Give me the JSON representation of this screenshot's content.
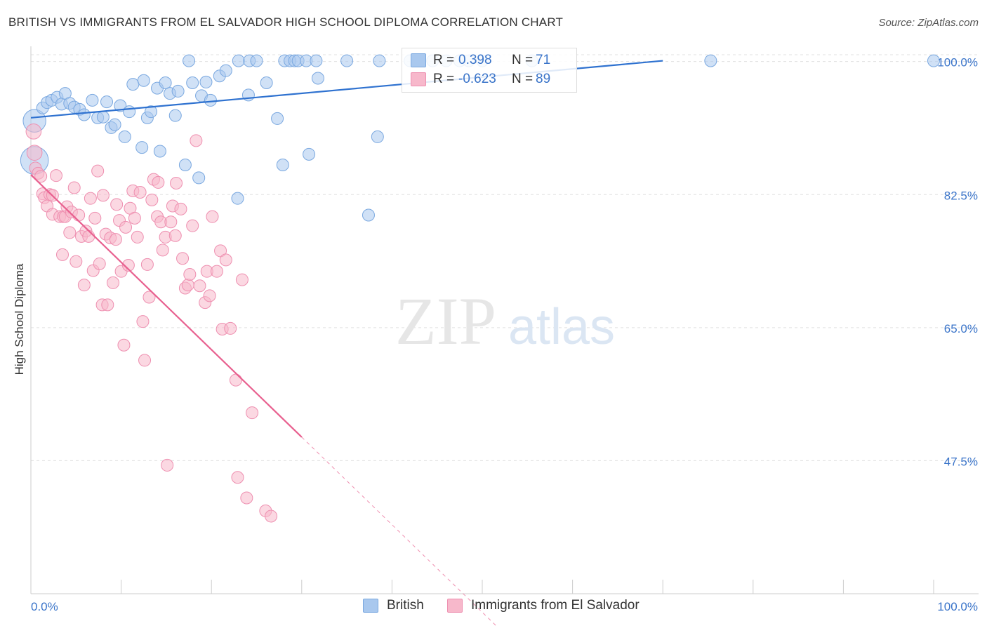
{
  "title": "BRITISH VS IMMIGRANTS FROM EL SALVADOR HIGH SCHOOL DIPLOMA CORRELATION CHART",
  "source": "Source: ZipAtlas.com",
  "watermark_zip": "ZIP",
  "watermark_atlas": "atlas",
  "legend": {
    "british": {
      "r_label": "R =",
      "r_value": "0.398",
      "n_label": "N =",
      "n_value": "71"
    },
    "salvador": {
      "r_label": "R =",
      "r_value": "-0.623",
      "n_label": "N =",
      "n_value": "89"
    }
  },
  "colors": {
    "british_fill": "#a9c8ee",
    "british_stroke": "#7aa8e0",
    "british_line": "#2f72d0",
    "salvador_fill": "#f7b8cb",
    "salvador_stroke": "#ee8fb0",
    "salvador_line": "#e8608f",
    "tick_label": "#3a74c9",
    "grid": "#e0e0e0"
  },
  "chart_data": {
    "type": "scatter",
    "title": "BRITISH VS IMMIGRANTS FROM EL SALVADOR HIGH SCHOOL DIPLOMA CORRELATION CHART",
    "ylabel": "High School Diploma",
    "xlabel": "",
    "xlim": [
      0,
      100
    ],
    "ylim": [
      30,
      102
    ],
    "x_tick_labels": [
      "0.0%",
      "100.0%"
    ],
    "y_ticks": [
      {
        "value": 100,
        "label": "100.0%"
      },
      {
        "value": 82.5,
        "label": "82.5%"
      },
      {
        "value": 65,
        "label": "65.0%"
      },
      {
        "value": 47.5,
        "label": "47.5%"
      }
    ],
    "grid": true,
    "legend_position": "bottom",
    "series": [
      {
        "name": "British",
        "r": 0.398,
        "n": 71,
        "trend": {
          "x": [
            0,
            70
          ],
          "y": [
            92.6,
            100.1
          ],
          "dashed_extension": false
        },
        "points": [
          [
            0.4,
            92.2,
            18
          ],
          [
            0.4,
            87.0,
            22
          ],
          [
            1.3,
            93.9,
            10
          ],
          [
            1.8,
            94.6,
            10
          ],
          [
            2.3,
            94.9,
            10
          ],
          [
            2.9,
            95.3,
            10
          ],
          [
            3.4,
            94.4,
            10
          ],
          [
            3.8,
            95.8,
            10
          ],
          [
            4.3,
            94.5,
            10
          ],
          [
            4.8,
            94.0,
            10
          ],
          [
            5.4,
            93.7,
            10
          ],
          [
            5.9,
            93.0,
            10
          ],
          [
            6.8,
            94.9,
            10
          ],
          [
            7.4,
            92.6,
            10
          ],
          [
            8.0,
            92.7,
            10
          ],
          [
            8.4,
            94.7,
            10
          ],
          [
            8.9,
            91.3,
            10
          ],
          [
            9.3,
            91.7,
            10
          ],
          [
            9.9,
            94.2,
            10
          ],
          [
            10.4,
            90.1,
            10
          ],
          [
            10.9,
            93.4,
            10
          ],
          [
            11.3,
            97.0,
            10
          ],
          [
            12.3,
            88.7,
            10
          ],
          [
            12.5,
            97.5,
            10
          ],
          [
            12.9,
            92.6,
            10
          ],
          [
            13.3,
            93.4,
            10
          ],
          [
            14.0,
            96.5,
            10
          ],
          [
            14.3,
            88.2,
            10
          ],
          [
            14.9,
            97.2,
            10
          ],
          [
            15.4,
            95.8,
            10
          ],
          [
            16.0,
            92.9,
            10
          ],
          [
            16.3,
            96.1,
            10
          ],
          [
            17.1,
            86.4,
            10
          ],
          [
            17.5,
            100.1,
            10
          ],
          [
            17.9,
            97.2,
            10
          ],
          [
            18.6,
            84.7,
            10
          ],
          [
            18.9,
            95.5,
            10
          ],
          [
            19.4,
            97.3,
            10
          ],
          [
            19.9,
            94.9,
            10
          ],
          [
            20.9,
            98.1,
            10
          ],
          [
            21.6,
            98.8,
            10
          ],
          [
            22.9,
            82.0,
            10
          ],
          [
            23.0,
            100.1,
            10
          ],
          [
            24.1,
            95.6,
            10
          ],
          [
            24.2,
            100.1,
            10
          ],
          [
            25.0,
            100.1,
            10
          ],
          [
            26.1,
            97.2,
            10
          ],
          [
            27.3,
            92.5,
            10
          ],
          [
            27.9,
            86.4,
            10
          ],
          [
            28.1,
            100.1,
            10
          ],
          [
            28.7,
            100.1,
            10
          ],
          [
            29.2,
            100.1,
            10
          ],
          [
            29.6,
            100.1,
            10
          ],
          [
            30.5,
            100.1,
            10
          ],
          [
            30.8,
            87.8,
            10
          ],
          [
            31.6,
            100.1,
            10
          ],
          [
            31.8,
            97.8,
            10
          ],
          [
            35.0,
            100.1,
            10
          ],
          [
            37.4,
            79.8,
            10
          ],
          [
            38.4,
            90.1,
            10
          ],
          [
            38.6,
            100.1,
            10
          ],
          [
            42.0,
            100.1,
            10
          ],
          [
            43.0,
            100.1,
            10
          ],
          [
            44.5,
            100.1,
            10
          ],
          [
            46.0,
            100.1,
            10
          ],
          [
            47.5,
            100.1,
            10
          ],
          [
            48.5,
            100.1,
            10
          ],
          [
            50.0,
            100.1,
            10
          ],
          [
            55.5,
            100.1,
            10
          ],
          [
            75.3,
            100.1,
            10
          ],
          [
            100.0,
            100.1,
            10
          ]
        ]
      },
      {
        "name": "Immigrants from El Salvador",
        "r": -0.623,
        "n": 89,
        "trend": {
          "x": [
            0,
            30
          ],
          "y": [
            85.1,
            50.6
          ],
          "dashed_to": [
            55,
            21.8
          ]
        },
        "points": [
          [
            0.3,
            90.8,
            12
          ],
          [
            0.4,
            88.0,
            12
          ],
          [
            0.5,
            86.0,
            10
          ],
          [
            0.8,
            85.3,
            10
          ],
          [
            1.1,
            84.9,
            10
          ],
          [
            1.3,
            82.6,
            10
          ],
          [
            1.5,
            82.1,
            10
          ],
          [
            1.8,
            81.0,
            10
          ],
          [
            2.1,
            82.5,
            10
          ],
          [
            2.4,
            82.4,
            10
          ],
          [
            2.4,
            79.9,
            10
          ],
          [
            2.8,
            85.0,
            10
          ],
          [
            3.2,
            79.6,
            10
          ],
          [
            3.5,
            74.6,
            10
          ],
          [
            3.6,
            79.6,
            10
          ],
          [
            3.8,
            79.6,
            10
          ],
          [
            4.0,
            80.9,
            10
          ],
          [
            4.3,
            77.5,
            10
          ],
          [
            4.5,
            80.2,
            10
          ],
          [
            4.8,
            83.4,
            10
          ],
          [
            5.0,
            73.7,
            10
          ],
          [
            5.3,
            79.8,
            10
          ],
          [
            5.6,
            77.0,
            10
          ],
          [
            5.9,
            70.6,
            10
          ],
          [
            6.1,
            77.7,
            10
          ],
          [
            6.4,
            77.0,
            10
          ],
          [
            6.6,
            82.0,
            10
          ],
          [
            6.9,
            72.5,
            10
          ],
          [
            7.1,
            79.4,
            10
          ],
          [
            7.4,
            85.6,
            10
          ],
          [
            7.6,
            73.4,
            10
          ],
          [
            7.9,
            68.0,
            10
          ],
          [
            8.0,
            82.4,
            10
          ],
          [
            8.3,
            77.3,
            10
          ],
          [
            8.5,
            68.0,
            10
          ],
          [
            8.8,
            76.8,
            10
          ],
          [
            9.1,
            70.9,
            10
          ],
          [
            9.4,
            76.6,
            10
          ],
          [
            9.5,
            81.2,
            10
          ],
          [
            9.8,
            79.1,
            10
          ],
          [
            10.0,
            72.4,
            10
          ],
          [
            10.3,
            62.7,
            10
          ],
          [
            10.5,
            78.2,
            10
          ],
          [
            10.8,
            73.2,
            10
          ],
          [
            11.0,
            80.7,
            10
          ],
          [
            11.3,
            83.0,
            10
          ],
          [
            11.5,
            79.4,
            10
          ],
          [
            11.8,
            76.9,
            10
          ],
          [
            12.1,
            82.8,
            10
          ],
          [
            12.4,
            65.8,
            10
          ],
          [
            12.6,
            60.7,
            10
          ],
          [
            12.9,
            73.3,
            10
          ],
          [
            13.1,
            69.0,
            10
          ],
          [
            13.4,
            81.8,
            10
          ],
          [
            13.6,
            84.5,
            10
          ],
          [
            14.0,
            79.6,
            10
          ],
          [
            14.1,
            84.1,
            10
          ],
          [
            14.4,
            78.9,
            10
          ],
          [
            14.6,
            75.2,
            10
          ],
          [
            14.9,
            76.9,
            10
          ],
          [
            15.1,
            46.9,
            10
          ],
          [
            15.5,
            78.9,
            10
          ],
          [
            15.7,
            81.0,
            10
          ],
          [
            16.0,
            77.1,
            10
          ],
          [
            16.1,
            84.0,
            10
          ],
          [
            16.6,
            80.6,
            10
          ],
          [
            16.8,
            74.1,
            10
          ],
          [
            17.1,
            70.2,
            10
          ],
          [
            17.4,
            70.6,
            10
          ],
          [
            17.6,
            72.0,
            10
          ],
          [
            17.9,
            78.4,
            10
          ],
          [
            18.3,
            89.6,
            10
          ],
          [
            18.7,
            70.5,
            10
          ],
          [
            19.3,
            68.3,
            10
          ],
          [
            19.5,
            72.4,
            10
          ],
          [
            19.8,
            69.2,
            10
          ],
          [
            20.1,
            79.6,
            10
          ],
          [
            20.6,
            72.4,
            10
          ],
          [
            21.0,
            75.1,
            10
          ],
          [
            21.2,
            64.8,
            10
          ],
          [
            21.6,
            73.9,
            10
          ],
          [
            22.1,
            64.9,
            10
          ],
          [
            22.7,
            58.1,
            10
          ],
          [
            22.9,
            45.3,
            10
          ],
          [
            23.4,
            71.3,
            10
          ],
          [
            23.9,
            42.6,
            10
          ],
          [
            24.5,
            53.8,
            10
          ],
          [
            26.0,
            40.9,
            10
          ],
          [
            26.6,
            40.2,
            10
          ]
        ]
      }
    ]
  },
  "bottom_legend": {
    "british": "British",
    "salvador": "Immigrants from El Salvador"
  }
}
